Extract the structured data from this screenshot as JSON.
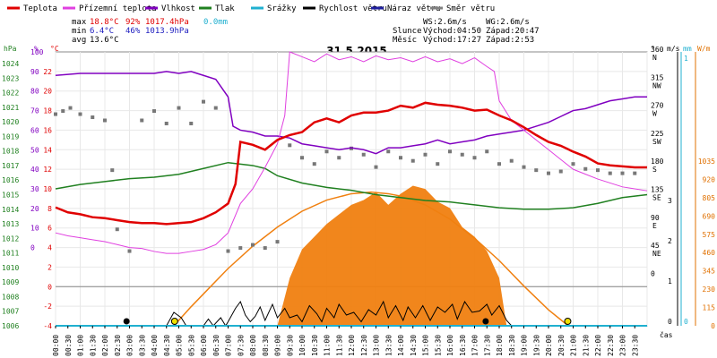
{
  "legend": [
    {
      "label": "Teplota",
      "color": "#e00000"
    },
    {
      "label": "Přízemní teplota",
      "color": "#e040e0"
    },
    {
      "label": "Vlhkost",
      "color": "#8000c0"
    },
    {
      "label": "Tlak",
      "color": "#208020"
    },
    {
      "label": "Srážky",
      "color": "#20b0d0"
    },
    {
      "label": "Rychlost větru",
      "color": "#000000"
    },
    {
      "label": "Náraz větru",
      "color": "#2020a0"
    },
    {
      "label": "Směr větru",
      "color": "#808080"
    }
  ],
  "stats": {
    "max": {
      "label": "max",
      "temp": "18.8°C",
      "hum": "92%",
      "press": "1017.4hPa",
      "rain": "0.0mm"
    },
    "min": {
      "label": "min",
      "temp": "6.4°C",
      "hum": "46%",
      "press": "1013.9hPa"
    },
    "avg": {
      "label": "avg",
      "temp": "13.6°C"
    }
  },
  "info": {
    "ws": "WS:2.6m/s",
    "wg": "WG:2.6m/s",
    "slunce": "Slunce",
    "sun_rise": "Východ:04:50",
    "sun_set": "Západ:20:47",
    "mesic": "Měsíc",
    "moon_rise": "Východ:17:27",
    "moon_set": "Západ:2:53"
  },
  "title": "31.5.2015",
  "axes": {
    "hpa_label": "hPa",
    "pct_label": "%",
    "c_label": "°C",
    "deg_label": "°",
    "ms_label": "m/s",
    "mm_label": "mm",
    "wm_label": "W/m",
    "cas_label": "čas",
    "hpa_ticks": [
      "1024",
      "1023",
      "1022",
      "1021",
      "1020",
      "1019",
      "1018",
      "1017",
      "1016",
      "1015",
      "1014",
      "1013",
      "1012",
      "1011",
      "1010",
      "1009",
      "1008",
      "1007",
      "1006"
    ],
    "pct_ticks": [
      "100",
      "90",
      "80",
      "70",
      "60",
      "50",
      "40",
      "30",
      "20",
      "10",
      "0"
    ],
    "c_ticks": [
      "22",
      "20",
      "18",
      "16",
      "14",
      "12",
      "10",
      "8",
      "6",
      "4",
      "2",
      "0",
      "-2",
      "-4"
    ],
    "dir_ticks": [
      {
        "deg": "360",
        "dir": "N"
      },
      {
        "deg": "315",
        "dir": "NW"
      },
      {
        "deg": "270",
        "dir": "W"
      },
      {
        "deg": "225",
        "dir": "SW"
      },
      {
        "deg": "180",
        "dir": "S"
      },
      {
        "deg": "135",
        "dir": "SE"
      },
      {
        "deg": "90",
        "dir": "E"
      },
      {
        "deg": "45",
        "dir": "NE"
      },
      {
        "deg": "0",
        "dir": ""
      }
    ],
    "ms_ticks": [
      "3",
      "2",
      "1",
      "0"
    ],
    "mm_ticks": [
      "1",
      "0"
    ],
    "wm_ticks": [
      "1035",
      "920",
      "805",
      "690",
      "575",
      "460",
      "345",
      "230",
      "115",
      "0"
    ],
    "time_ticks": [
      "00:00",
      "00:30",
      "01:00",
      "01:30",
      "02:00",
      "02:30",
      "03:00",
      "03:30",
      "04:00",
      "04:30",
      "05:00",
      "05:30",
      "06:00",
      "06:30",
      "07:00",
      "07:30",
      "08:00",
      "08:30",
      "09:00",
      "09:30",
      "10:00",
      "10:30",
      "11:00",
      "11:30",
      "12:00",
      "12:30",
      "13:00",
      "13:30",
      "14:00",
      "14:30",
      "15:00",
      "15:30",
      "16:00",
      "16:30",
      "17:00",
      "17:30",
      "18:00",
      "18:30",
      "19:00",
      "19:30",
      "20:00",
      "20:30",
      "21:00",
      "21:30",
      "22:00",
      "22:30",
      "23:00",
      "23:30"
    ]
  },
  "chart_data": {
    "type": "line",
    "x_unit": "hour",
    "xlim": [
      0,
      24
    ],
    "temperature_c": [
      [
        0,
        8.1
      ],
      [
        0.5,
        7.6
      ],
      [
        1,
        7.4
      ],
      [
        1.5,
        7.1
      ],
      [
        2,
        7.0
      ],
      [
        2.5,
        6.8
      ],
      [
        3,
        6.6
      ],
      [
        3.5,
        6.5
      ],
      [
        4,
        6.5
      ],
      [
        4.5,
        6.4
      ],
      [
        5,
        6.5
      ],
      [
        5.5,
        6.6
      ],
      [
        6,
        7.0
      ],
      [
        6.5,
        7.6
      ],
      [
        7,
        8.5
      ],
      [
        7.3,
        10.5
      ],
      [
        7.5,
        14.8
      ],
      [
        8,
        14.5
      ],
      [
        8.5,
        14.0
      ],
      [
        9,
        15.0
      ],
      [
        9.5,
        15.5
      ],
      [
        10,
        15.8
      ],
      [
        10.5,
        16.8
      ],
      [
        11,
        17.2
      ],
      [
        11.5,
        16.8
      ],
      [
        12,
        17.5
      ],
      [
        12.5,
        17.8
      ],
      [
        13,
        17.8
      ],
      [
        13.5,
        18.0
      ],
      [
        14,
        18.5
      ],
      [
        14.5,
        18.3
      ],
      [
        15,
        18.8
      ],
      [
        15.5,
        18.6
      ],
      [
        16,
        18.5
      ],
      [
        16.5,
        18.3
      ],
      [
        17,
        18.0
      ],
      [
        17.5,
        18.1
      ],
      [
        18,
        17.5
      ],
      [
        18.5,
        17.0
      ],
      [
        19,
        16.3
      ],
      [
        19.5,
        15.5
      ],
      [
        20,
        14.8
      ],
      [
        20.5,
        14.4
      ],
      [
        21,
        13.8
      ],
      [
        21.5,
        13.3
      ],
      [
        22,
        12.6
      ],
      [
        22.5,
        12.4
      ],
      [
        23,
        12.3
      ],
      [
        23.5,
        12.2
      ],
      [
        24,
        12.2
      ]
    ],
    "ground_temp_c": [
      [
        0,
        5.5
      ],
      [
        0.5,
        5.2
      ],
      [
        1,
        5.0
      ],
      [
        1.5,
        4.8
      ],
      [
        2,
        4.6
      ],
      [
        2.5,
        4.3
      ],
      [
        3,
        4.0
      ],
      [
        3.5,
        3.9
      ],
      [
        4,
        3.6
      ],
      [
        4.5,
        3.4
      ],
      [
        5,
        3.4
      ],
      [
        5.5,
        3.6
      ],
      [
        6,
        3.8
      ],
      [
        6.5,
        4.3
      ],
      [
        7,
        5.5
      ],
      [
        7.5,
        8.5
      ],
      [
        8,
        10.0
      ],
      [
        8.5,
        12.2
      ],
      [
        9,
        14.6
      ],
      [
        9.3,
        17.5
      ],
      [
        9.5,
        24.0
      ],
      [
        10,
        23.5
      ],
      [
        10.5,
        23.0
      ],
      [
        11,
        23.8
      ],
      [
        11.5,
        23.2
      ],
      [
        12,
        23.5
      ],
      [
        12.5,
        23.0
      ],
      [
        13,
        23.6
      ],
      [
        13.5,
        23.2
      ],
      [
        14,
        23.4
      ],
      [
        14.5,
        23.0
      ],
      [
        15,
        23.5
      ],
      [
        15.5,
        23.0
      ],
      [
        16,
        23.3
      ],
      [
        16.5,
        22.8
      ],
      [
        17,
        23.4
      ],
      [
        17.5,
        22.5
      ],
      [
        17.8,
        22.0
      ],
      [
        18,
        19.0
      ],
      [
        18.5,
        17.0
      ],
      [
        19,
        16.0
      ],
      [
        19.5,
        15.0
      ],
      [
        20,
        14.0
      ],
      [
        20.5,
        13.0
      ],
      [
        21,
        12.0
      ],
      [
        21.5,
        11.5
      ],
      [
        22,
        11.0
      ],
      [
        22.5,
        10.6
      ],
      [
        23,
        10.2
      ],
      [
        23.5,
        10.0
      ],
      [
        24,
        9.8
      ]
    ],
    "humidity_pct": [
      [
        0,
        88
      ],
      [
        1,
        89
      ],
      [
        2,
        89
      ],
      [
        3,
        89
      ],
      [
        4,
        89
      ],
      [
        4.5,
        90
      ],
      [
        5,
        89
      ],
      [
        5.5,
        90
      ],
      [
        6,
        88
      ],
      [
        6.5,
        86
      ],
      [
        7,
        77
      ],
      [
        7.2,
        62
      ],
      [
        7.5,
        60
      ],
      [
        8,
        59
      ],
      [
        8.5,
        57
      ],
      [
        9,
        57
      ],
      [
        9.5,
        56
      ],
      [
        10,
        53
      ],
      [
        10.5,
        52
      ],
      [
        11,
        51
      ],
      [
        11.5,
        50
      ],
      [
        12,
        51
      ],
      [
        12.5,
        50
      ],
      [
        13,
        48
      ],
      [
        13.5,
        51
      ],
      [
        14,
        51
      ],
      [
        14.5,
        52
      ],
      [
        15,
        53
      ],
      [
        15.5,
        55
      ],
      [
        16,
        53
      ],
      [
        16.5,
        54
      ],
      [
        17,
        55
      ],
      [
        17.5,
        57
      ],
      [
        18,
        58
      ],
      [
        18.5,
        59
      ],
      [
        19,
        60
      ],
      [
        19.5,
        62
      ],
      [
        20,
        64
      ],
      [
        20.5,
        67
      ],
      [
        21,
        70
      ],
      [
        21.5,
        71
      ],
      [
        22,
        73
      ],
      [
        22.5,
        75
      ],
      [
        23,
        76
      ],
      [
        23.5,
        77
      ],
      [
        24,
        77
      ]
    ],
    "pressure_hpa": [
      [
        0,
        1015.4
      ],
      [
        1,
        1015.7
      ],
      [
        2,
        1015.9
      ],
      [
        3,
        1016.1
      ],
      [
        4,
        1016.2
      ],
      [
        5,
        1016.4
      ],
      [
        6,
        1016.8
      ],
      [
        7,
        1017.2
      ],
      [
        8,
        1017.0
      ],
      [
        8.5,
        1016.8
      ],
      [
        9,
        1016.3
      ],
      [
        10,
        1015.8
      ],
      [
        11,
        1015.5
      ],
      [
        12,
        1015.3
      ],
      [
        13,
        1015.0
      ],
      [
        14,
        1014.8
      ],
      [
        15,
        1014.6
      ],
      [
        16,
        1014.5
      ],
      [
        17,
        1014.3
      ],
      [
        18,
        1014.1
      ],
      [
        19,
        1014.0
      ],
      [
        20,
        1014.0
      ],
      [
        21,
        1014.1
      ],
      [
        22,
        1014.4
      ],
      [
        23,
        1014.8
      ],
      [
        24,
        1015.0
      ]
    ],
    "wind_speed_ms": [
      [
        0,
        0
      ],
      [
        4.5,
        0
      ],
      [
        4.8,
        1.0
      ],
      [
        5.1,
        0.6
      ],
      [
        5.3,
        0
      ],
      [
        6,
        0
      ],
      [
        6.2,
        0.5
      ],
      [
        6.4,
        0
      ],
      [
        6.7,
        0.6
      ],
      [
        6.9,
        0
      ],
      [
        7,
        0.3
      ],
      [
        7.3,
        1.3
      ],
      [
        7.5,
        1.8
      ],
      [
        7.7,
        0.8
      ],
      [
        7.9,
        0.3
      ],
      [
        8.1,
        0.7
      ],
      [
        8.3,
        1.4
      ],
      [
        8.5,
        0.4
      ],
      [
        8.8,
        1.6
      ],
      [
        9.0,
        0.6
      ],
      [
        9.3,
        1.3
      ],
      [
        9.5,
        0.6
      ],
      [
        9.8,
        0.8
      ],
      [
        10,
        0.3
      ],
      [
        10.3,
        1.5
      ],
      [
        10.6,
        0.9
      ],
      [
        10.8,
        0.3
      ],
      [
        11,
        1.3
      ],
      [
        11.3,
        0.6
      ],
      [
        11.5,
        1.6
      ],
      [
        11.8,
        0.8
      ],
      [
        12.1,
        1.0
      ],
      [
        12.4,
        0.3
      ],
      [
        12.7,
        1.2
      ],
      [
        13,
        0.8
      ],
      [
        13.3,
        1.8
      ],
      [
        13.5,
        0.6
      ],
      [
        13.8,
        1.5
      ],
      [
        14.1,
        0.4
      ],
      [
        14.3,
        1.4
      ],
      [
        14.6,
        0.6
      ],
      [
        14.9,
        1.5
      ],
      [
        15.2,
        0.4
      ],
      [
        15.5,
        1.4
      ],
      [
        15.8,
        1.0
      ],
      [
        16.1,
        1.6
      ],
      [
        16.3,
        0.5
      ],
      [
        16.6,
        1.8
      ],
      [
        16.9,
        1.0
      ],
      [
        17.2,
        1.1
      ],
      [
        17.5,
        1.6
      ],
      [
        17.7,
        0.8
      ],
      [
        18,
        1.5
      ],
      [
        18.3,
        0.4
      ],
      [
        18.5,
        0
      ],
      [
        24,
        0
      ]
    ],
    "wind_direction_deg": [
      [
        0,
        260
      ],
      [
        0.3,
        265
      ],
      [
        0.6,
        270
      ],
      [
        1,
        260
      ],
      [
        1.5,
        255
      ],
      [
        2,
        250
      ],
      [
        2.3,
        170
      ],
      [
        2.5,
        75
      ],
      [
        3,
        40
      ],
      [
        3.5,
        250
      ],
      [
        4,
        265
      ],
      [
        4.5,
        245
      ],
      [
        5,
        270
      ],
      [
        5.5,
        245
      ],
      [
        6,
        280
      ],
      [
        6.5,
        270
      ],
      [
        7,
        40
      ],
      [
        7.5,
        45
      ],
      [
        8,
        50
      ],
      [
        8.5,
        45
      ],
      [
        9,
        55
      ],
      [
        9.5,
        210
      ],
      [
        10,
        190
      ],
      [
        10.5,
        180
      ],
      [
        11,
        200
      ],
      [
        11.5,
        190
      ],
      [
        12,
        205
      ],
      [
        12.5,
        195
      ],
      [
        13,
        175
      ],
      [
        13.5,
        200
      ],
      [
        14,
        190
      ],
      [
        14.5,
        185
      ],
      [
        15,
        195
      ],
      [
        15.5,
        180
      ],
      [
        16,
        200
      ],
      [
        16.5,
        195
      ],
      [
        17,
        190
      ],
      [
        17.5,
        200
      ],
      [
        18,
        180
      ],
      [
        18.5,
        185
      ],
      [
        19,
        175
      ],
      [
        19.5,
        170
      ],
      [
        20,
        165
      ],
      [
        20.5,
        168
      ],
      [
        21,
        180
      ],
      [
        21.5,
        172
      ],
      [
        22,
        170
      ],
      [
        22.5,
        165
      ],
      [
        23,
        165
      ],
      [
        23.5,
        165
      ]
    ],
    "solar_wm2": [
      [
        0,
        0
      ],
      [
        9.0,
        0
      ],
      [
        9.5,
        300
      ],
      [
        10,
        480
      ],
      [
        10.5,
        560
      ],
      [
        11,
        640
      ],
      [
        11.5,
        700
      ],
      [
        12,
        760
      ],
      [
        12.5,
        790
      ],
      [
        13,
        840
      ],
      [
        13.5,
        760
      ],
      [
        14,
        830
      ],
      [
        14.5,
        880
      ],
      [
        15,
        860
      ],
      [
        15.5,
        780
      ],
      [
        16,
        740
      ],
      [
        16.5,
        620
      ],
      [
        17,
        560
      ],
      [
        17.5,
        470
      ],
      [
        18,
        300
      ],
      [
        18.3,
        0
      ],
      [
        24,
        0
      ]
    ],
    "solar_theoretical_wm2": [
      [
        4.8,
        0
      ],
      [
        5.5,
        120
      ],
      [
        6,
        200
      ],
      [
        7,
        360
      ],
      [
        8,
        500
      ],
      [
        9,
        620
      ],
      [
        10,
        720
      ],
      [
        11,
        790
      ],
      [
        12,
        830
      ],
      [
        12.8,
        840
      ],
      [
        13.5,
        830
      ],
      [
        14,
        815
      ],
      [
        15,
        760
      ],
      [
        16,
        670
      ],
      [
        17,
        550
      ],
      [
        18,
        410
      ],
      [
        19,
        250
      ],
      [
        20,
        100
      ],
      [
        20.8,
        0
      ]
    ],
    "rain_mm": [
      [
        0,
        0
      ],
      [
        24,
        0
      ]
    ],
    "markers": {
      "sunrise": 4.83,
      "sunset": 20.78,
      "moonrise": 17.45,
      "moonset": 2.88
    }
  }
}
